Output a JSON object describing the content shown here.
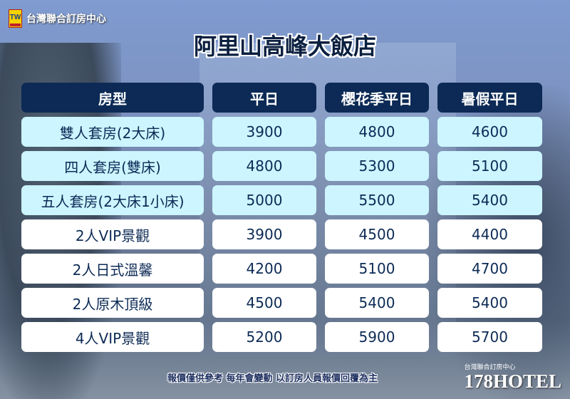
{
  "logo": {
    "mark": "TW",
    "text": "台灣聯合訂房中心"
  },
  "title": "阿里山高峰大飯店",
  "table": {
    "headers": [
      "房型",
      "平日",
      "櫻花季平日",
      "暑假平日"
    ],
    "rows": [
      {
        "room": "雙人套房(2大床)",
        "weekday": "3900",
        "sakura": "4800",
        "summer": "4600",
        "highlight": true
      },
      {
        "room": "四人套房(雙床)",
        "weekday": "4800",
        "sakura": "5300",
        "summer": "5100",
        "highlight": true
      },
      {
        "room": "五人套房(2大床1小床)",
        "weekday": "5000",
        "sakura": "5500",
        "summer": "5400",
        "highlight": true
      },
      {
        "room": "2人VIP景觀",
        "weekday": "3900",
        "sakura": "4500",
        "summer": "4400",
        "highlight": false
      },
      {
        "room": "2人日式溫馨",
        "weekday": "4200",
        "sakura": "5100",
        "summer": "4700",
        "highlight": false
      },
      {
        "room": "2人原木頂級",
        "weekday": "4500",
        "sakura": "5400",
        "summer": "5400",
        "highlight": false
      },
      {
        "room": "4人VIP景觀",
        "weekday": "5200",
        "sakura": "5900",
        "summer": "5700",
        "highlight": false
      }
    ]
  },
  "footer": {
    "note": "報價僅供參考  每年會變動  以訂房人員報價回覆為主",
    "brand_small": "台灣聯合訂房中心",
    "brand_big": "178HOTEL"
  },
  "colors": {
    "header": "#0c2a55",
    "highlight_row": "#ccf5ff",
    "row": "#ffffff"
  }
}
